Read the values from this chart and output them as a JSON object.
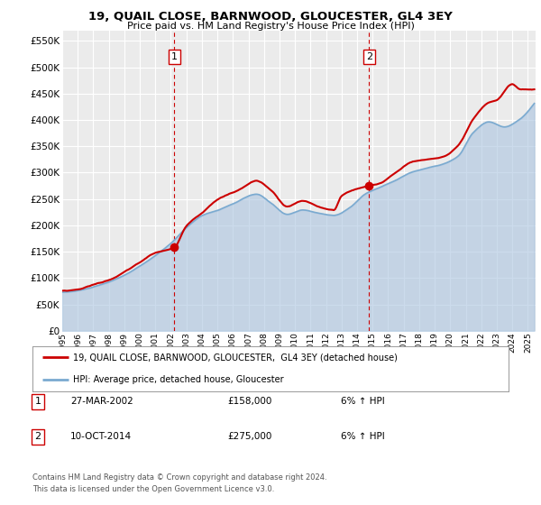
{
  "title": "19, QUAIL CLOSE, BARNWOOD, GLOUCESTER, GL4 3EY",
  "subtitle": "Price paid vs. HM Land Registry's House Price Index (HPI)",
  "ylabel_ticks": [
    0,
    50000,
    100000,
    150000,
    200000,
    250000,
    300000,
    350000,
    400000,
    450000,
    500000,
    550000
  ],
  "ylim": [
    0,
    570000
  ],
  "xlim_start": 1995.0,
  "xlim_end": 2025.5,
  "sale1_x": 2002.23,
  "sale1_y": 158000,
  "sale2_x": 2014.78,
  "sale2_y": 275000,
  "house_color": "#cc0000",
  "hpi_color": "#aac4e0",
  "hpi_line_color": "#7aaad0",
  "dashed_color": "#cc0000",
  "background_color": "#f0f0f0",
  "legend_line1": "19, QUAIL CLOSE, BARNWOOD, GLOUCESTER,  GL4 3EY (detached house)",
  "legend_line2": "HPI: Average price, detached house, Gloucester",
  "table_row1": [
    "1",
    "27-MAR-2002",
    "£158,000",
    "6% ↑ HPI"
  ],
  "table_row2": [
    "2",
    "10-OCT-2014",
    "£275,000",
    "6% ↑ HPI"
  ],
  "footer1": "Contains HM Land Registry data © Crown copyright and database right 2024.",
  "footer2": "This data is licensed under the Open Government Licence v3.0."
}
